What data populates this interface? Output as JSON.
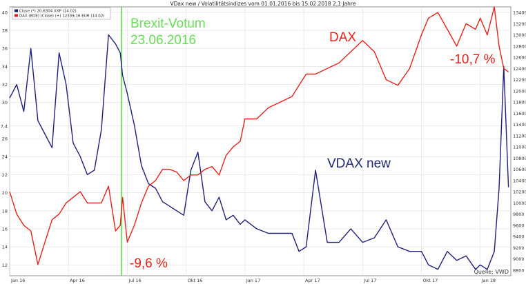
{
  "chart_data": {
    "type": "line",
    "title": "VDax new / Volatilitätsindizes vom 01.01.2016 bis 15.02.2018 2,1 Jahre",
    "legend": {
      "placement": "top-left",
      "entries": [
        {
          "label": "Close (*) 20,6304 XXP (14.02)",
          "color": "#1f1f7a"
        },
        {
          "label": "DAX (EDE) (Close) (+) 12339,16 EUR (14.02)",
          "color": "#e8201a"
        }
      ]
    },
    "x_ticks": [
      "Jan 16",
      "Apr 16",
      "Jul 16",
      "Okt 16",
      "Jan 17",
      "Apr 17",
      "Jul 17",
      "Okt 17",
      "Jan 18"
    ],
    "y_left": {
      "ticks": [
        "12",
        "14",
        "16",
        "18",
        "20",
        "22",
        "24",
        "26",
        "27,4",
        "30",
        "32",
        "34",
        "36",
        "38",
        "40"
      ],
      "range": [
        10.8,
        40.6
      ]
    },
    "y_right": {
      "ticks": [
        "8800",
        "9000",
        "9200",
        "9400",
        "9600",
        "9800",
        "10000",
        "10200",
        "10400",
        "10600",
        "10800",
        "11000",
        "11200",
        "11400",
        "11600",
        "11800",
        "12000",
        "12200",
        "12400",
        "12600",
        "12800",
        "13000",
        "13200",
        "13400"
      ],
      "range": [
        8700,
        13500
      ]
    },
    "grid": true,
    "annotations": [
      {
        "id": "brexit",
        "text": "Brexit-Votum",
        "color": "#66dd55"
      },
      {
        "id": "brexit-date",
        "text": "23.06.2016",
        "color": "#66dd55"
      },
      {
        "id": "dax-label",
        "text": "DAX",
        "color": "#e8201a"
      },
      {
        "id": "vdax-label",
        "text": "VDAX new",
        "color": "#1f2a6e"
      },
      {
        "id": "pct-brexit",
        "text": "-9,6 %",
        "color": "#e8201a"
      },
      {
        "id": "pct-recent",
        "text": "-10,7 %",
        "color": "#e8201a"
      }
    ],
    "source": "Quelle: VWD",
    "brexit_line_date": "23.06.2016",
    "series": [
      {
        "name": "Close (*) 20,6304 XXP (14.02)",
        "axis": "left",
        "color": "#1f1f7a",
        "x": [
          2016.0,
          2016.03,
          2016.06,
          2016.09,
          2016.12,
          2016.15,
          2016.18,
          2016.21,
          2016.24,
          2016.27,
          2016.3,
          2016.33,
          2016.36,
          2016.39,
          2016.42,
          2016.45,
          2016.47,
          2016.48,
          2016.5,
          2016.53,
          2016.56,
          2016.59,
          2016.62,
          2016.65,
          2016.68,
          2016.71,
          2016.74,
          2016.77,
          2016.8,
          2016.83,
          2016.86,
          2016.89,
          2016.92,
          2016.95,
          2016.98,
          2017.0,
          2017.05,
          2017.1,
          2017.15,
          2017.2,
          2017.23,
          2017.26,
          2017.3,
          2017.35,
          2017.4,
          2017.45,
          2017.5,
          2017.55,
          2017.6,
          2017.65,
          2017.7,
          2017.75,
          2017.78,
          2017.82,
          2017.86,
          2017.9,
          2017.94,
          2017.98,
          2018.0,
          2018.03,
          2018.06,
          2018.08,
          2018.1,
          2018.12
        ],
        "y": [
          30.5,
          32.0,
          29.0,
          36.0,
          28.0,
          26.5,
          25.0,
          35.5,
          32.0,
          25.5,
          24.0,
          22.0,
          22.5,
          27.0,
          37.5,
          36.5,
          35.5,
          33.0,
          31.0,
          27.5,
          23.0,
          21.0,
          20.5,
          19.0,
          18.5,
          18.0,
          17.5,
          22.5,
          24.5,
          19.0,
          18.0,
          19.5,
          17.0,
          17.5,
          16.5,
          17.0,
          16.0,
          15.5,
          15.5,
          15.5,
          13.5,
          14.0,
          22.5,
          14.5,
          14.5,
          16.0,
          14.5,
          15.0,
          17.0,
          14.0,
          13.5,
          13.5,
          12.0,
          11.5,
          13.5,
          12.5,
          13.0,
          11.5,
          12.0,
          11.5,
          13.5,
          20.5,
          34.0,
          20.6
        ]
      },
      {
        "name": "DAX (EDE) (Close) (+) 12339,16 EUR (14.02)",
        "axis": "right",
        "color": "#e8201a",
        "x": [
          2016.0,
          2016.03,
          2016.06,
          2016.09,
          2016.12,
          2016.15,
          2016.18,
          2016.21,
          2016.24,
          2016.27,
          2016.3,
          2016.33,
          2016.36,
          2016.39,
          2016.42,
          2016.45,
          2016.47,
          2016.48,
          2016.5,
          2016.53,
          2016.56,
          2016.59,
          2016.62,
          2016.65,
          2016.68,
          2016.71,
          2016.74,
          2016.77,
          2016.8,
          2016.83,
          2016.86,
          2016.89,
          2016.92,
          2016.95,
          2016.98,
          2017.0,
          2017.05,
          2017.1,
          2017.15,
          2017.2,
          2017.23,
          2017.26,
          2017.3,
          2017.35,
          2017.4,
          2017.45,
          2017.5,
          2017.55,
          2017.6,
          2017.65,
          2017.7,
          2017.75,
          2017.78,
          2017.82,
          2017.86,
          2017.9,
          2017.94,
          2017.98,
          2018.0,
          2018.03,
          2018.06,
          2018.08,
          2018.1,
          2018.12
        ],
        "y": [
          10200,
          9800,
          9600,
          9500,
          8900,
          9300,
          9700,
          9800,
          10000,
          10100,
          10200,
          10000,
          10000,
          10000,
          10300,
          9500,
          9600,
          10100,
          9300,
          9600,
          10000,
          10300,
          10400,
          10600,
          10600,
          10550,
          10400,
          10500,
          10500,
          10600,
          10650,
          10500,
          10850,
          11000,
          11100,
          11500,
          11500,
          11700,
          11800,
          11900,
          12100,
          12300,
          12300,
          12400,
          12500,
          12700,
          12900,
          12700,
          12200,
          12100,
          12400,
          13000,
          13300,
          13400,
          13100,
          12800,
          13200,
          13100,
          13300,
          13000,
          13500,
          12800,
          12400,
          12339
        ]
      }
    ]
  }
}
